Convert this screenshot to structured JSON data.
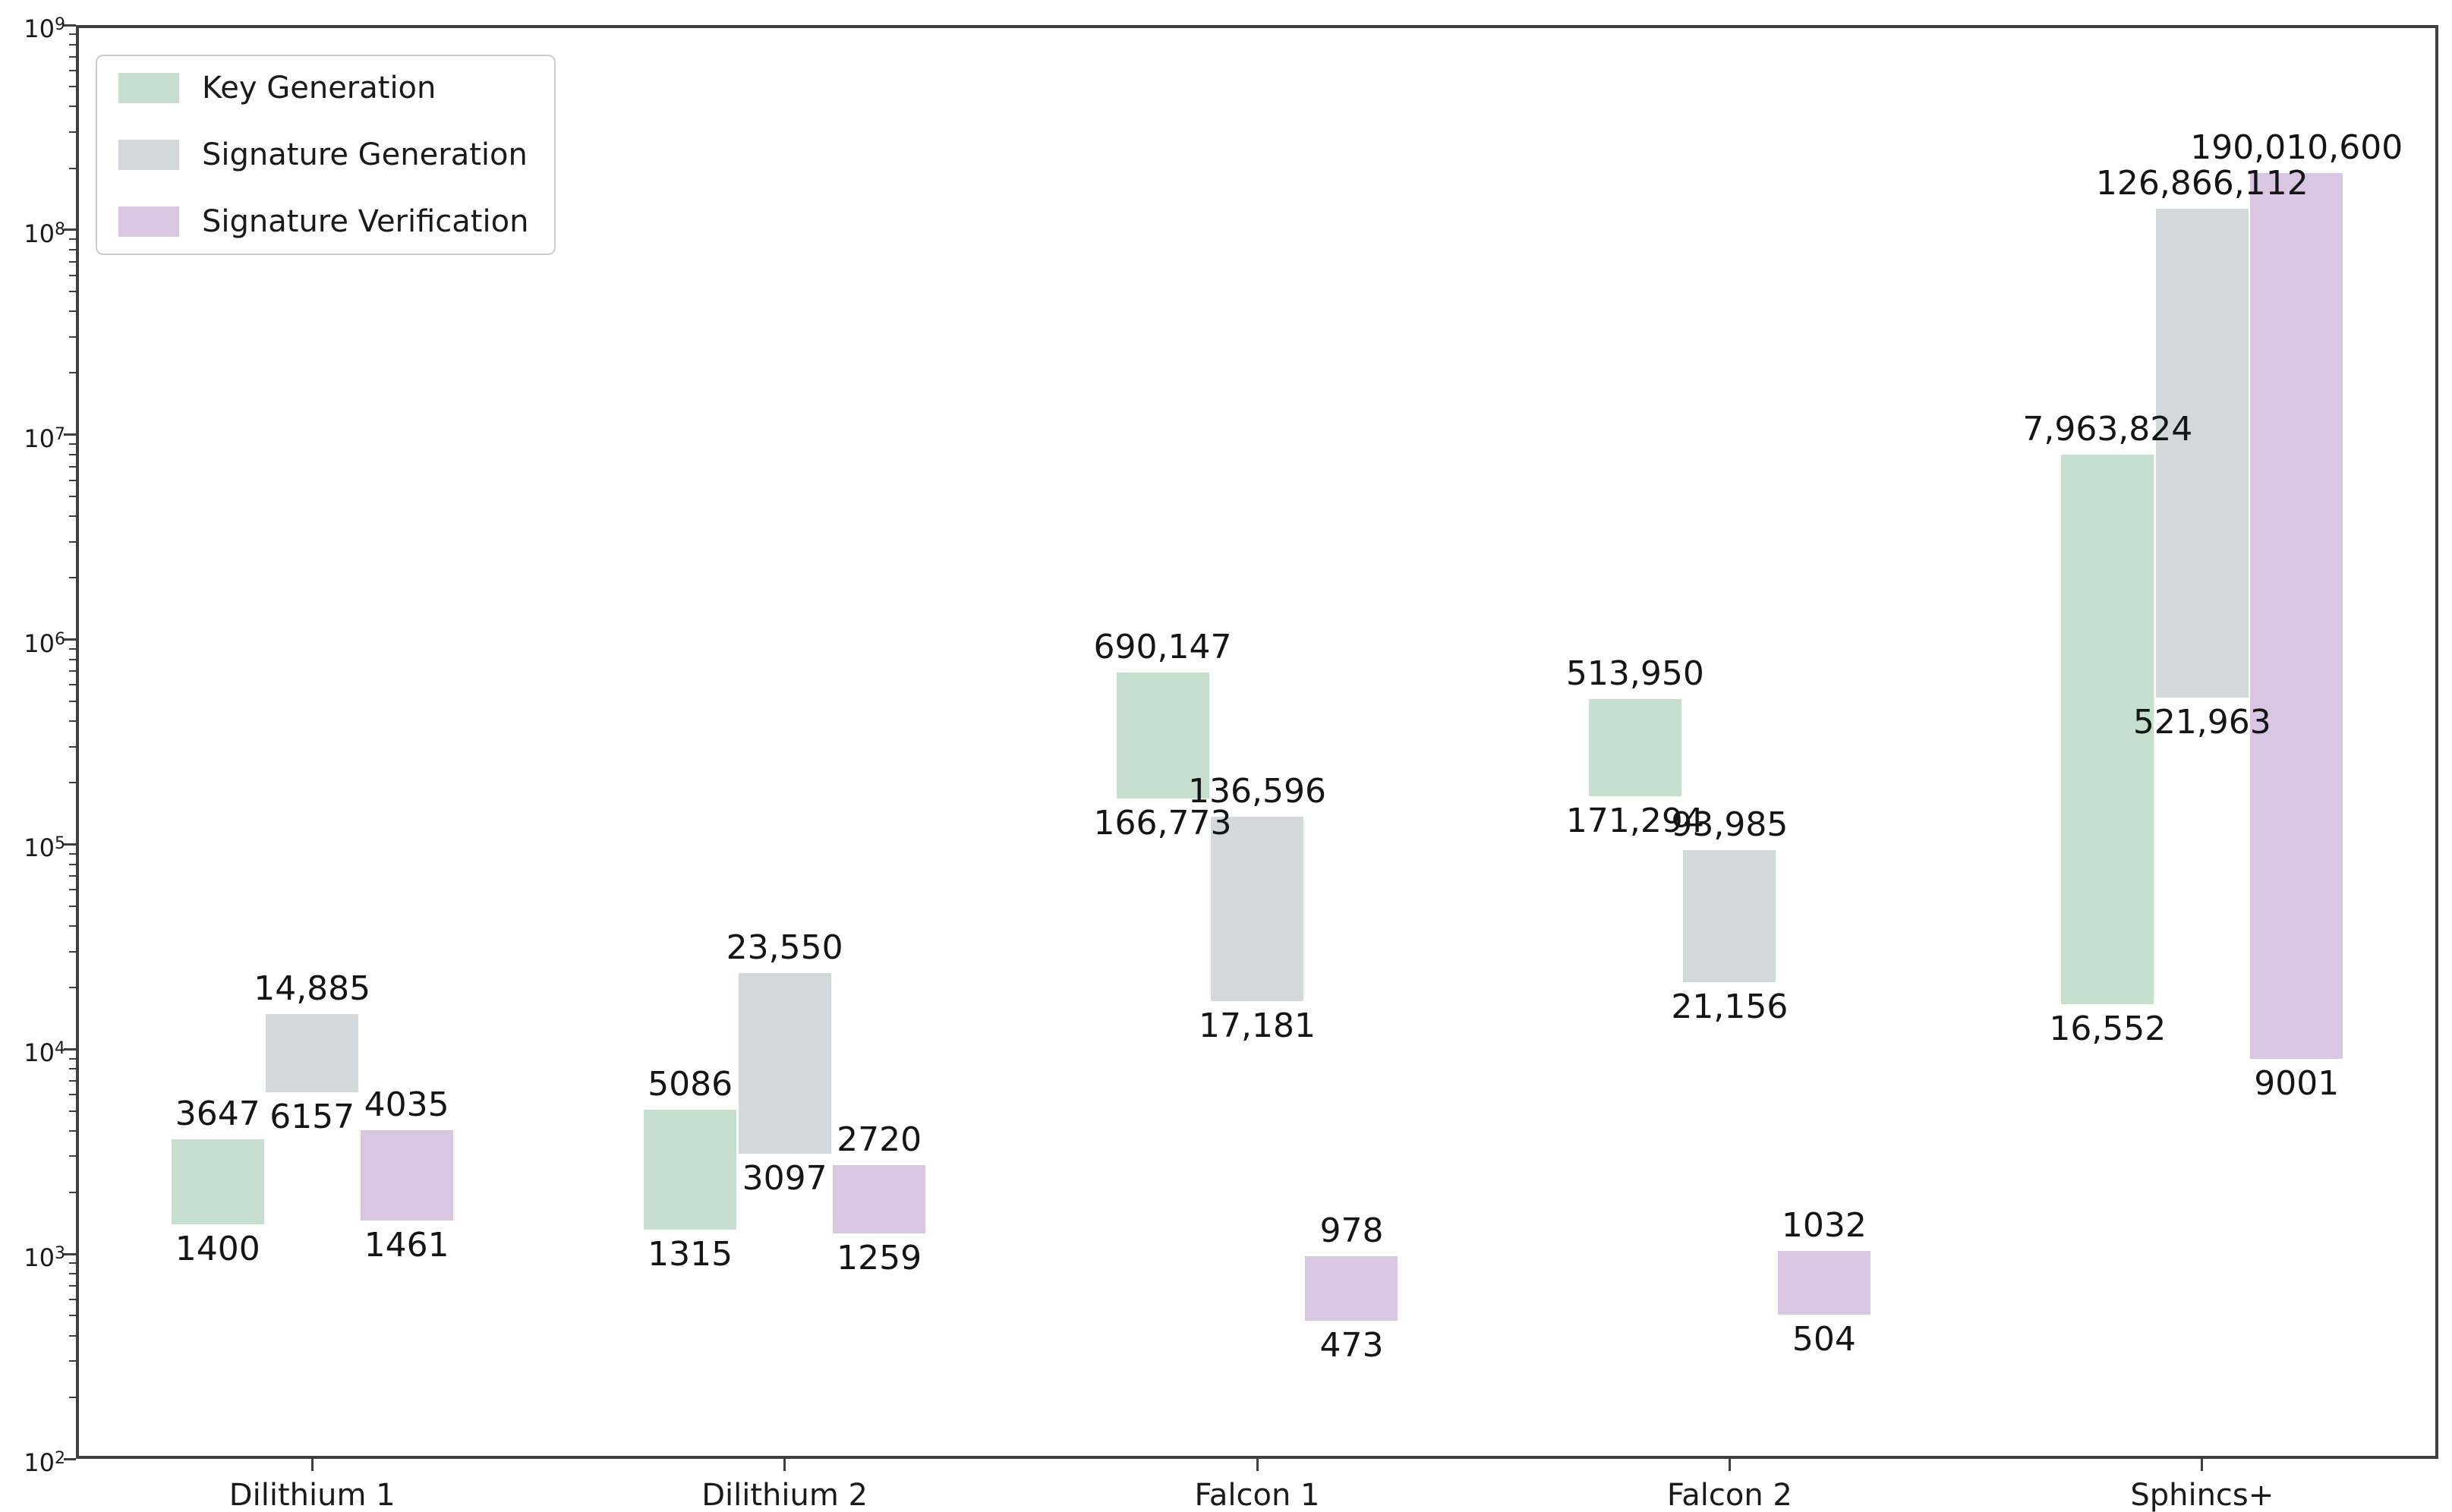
{
  "chart_data": {
    "type": "bar",
    "subtype": "floating-range-bars",
    "y_scale": "log",
    "y_axis": {
      "min_exponent": 2,
      "max_exponent": 9,
      "tick_exponents": [
        2,
        3,
        4,
        5,
        6,
        7,
        8,
        9
      ],
      "tick_base": "10",
      "minor_ticks": true
    },
    "grid": "off",
    "title": "",
    "xlabel": "",
    "ylabel": "",
    "categories": [
      "Dilithium 1",
      "Dilithium 2",
      "Falcon 1",
      "Falcon 2",
      "Sphincs+"
    ],
    "legend": {
      "position": "top-left",
      "entries": [
        "Key Generation",
        "Signature Generation",
        "Signature Verification"
      ]
    },
    "series": [
      {
        "name": "Key Generation",
        "color": "#c7dfce",
        "bars": [
          {
            "min": 1400,
            "max": 3647,
            "min_label": "1400",
            "max_label": "3647"
          },
          {
            "min": 1315,
            "max": 5086,
            "min_label": "1315",
            "max_label": "5086"
          },
          {
            "min": 166773,
            "max": 690147,
            "min_label": "166,773",
            "max_label": "690,147"
          },
          {
            "min": 171294,
            "max": 513950,
            "min_label": "171,294",
            "max_label": "513,950"
          },
          {
            "min": 16552,
            "max": 7963824,
            "min_label": "16,552",
            "max_label": "7,963,824"
          }
        ]
      },
      {
        "name": "Signature Generation",
        "color": "#d3d8db",
        "bars": [
          {
            "min": 6157,
            "max": 14885,
            "min_label": "6157",
            "max_label": "14,885"
          },
          {
            "min": 3097,
            "max": 23550,
            "min_label": "3097",
            "max_label": "23,550"
          },
          {
            "min": 17181,
            "max": 136596,
            "min_label": "17,181",
            "max_label": "136,596"
          },
          {
            "min": 21156,
            "max": 93985,
            "min_label": "21,156",
            "max_label": "93,985"
          },
          {
            "min": 521963,
            "max": 126866112,
            "min_label": "521,963",
            "max_label": "126,866,112"
          }
        ]
      },
      {
        "name": "Signature Verification",
        "color": "#d8c6e3",
        "bars": [
          {
            "min": 1461,
            "max": 4035,
            "min_label": "1461",
            "max_label": "4035"
          },
          {
            "min": 1259,
            "max": 2720,
            "min_label": "1259",
            "max_label": "2720"
          },
          {
            "min": 473,
            "max": 978,
            "min_label": "473",
            "max_label": "978"
          },
          {
            "min": 504,
            "max": 1032,
            "min_label": "504",
            "max_label": "1032"
          },
          {
            "min": 9001,
            "max": 190010600,
            "min_label": "9001",
            "max_label": "190,010,600"
          }
        ]
      }
    ]
  }
}
